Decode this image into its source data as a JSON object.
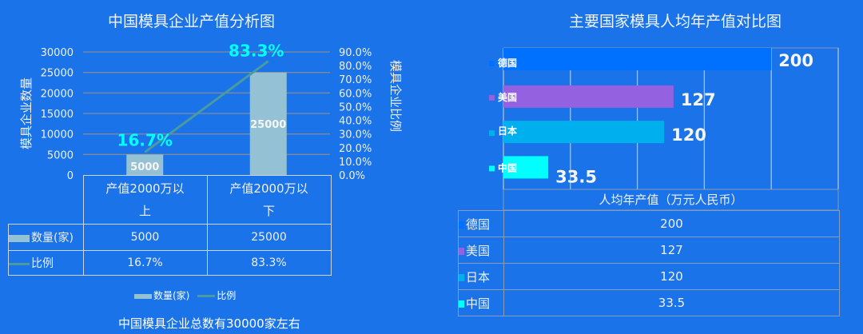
{
  "colors": {
    "bg": "#1a73e8",
    "bar": "#94c2d4",
    "line": "#4a9aa0",
    "label": "#00ffff",
    "grid": "#7f8a99"
  },
  "chart_data": [
    {
      "type": "bar+line",
      "title": "中国模具企业产值分析图",
      "categories": [
        "产值2000万以上",
        "产值2000万以下"
      ],
      "category_lines": [
        [
          "产值2000万以",
          "上"
        ],
        [
          "产值2000万以",
          "下"
        ]
      ],
      "series": [
        {
          "name": "数量(家)",
          "type": "bar",
          "values": [
            5000,
            25000
          ],
          "data_labels": [
            "5000",
            "25000"
          ]
        },
        {
          "name": "比例",
          "type": "line",
          "axis": "right",
          "values": [
            16.7,
            83.3
          ],
          "data_labels": [
            "16.7%",
            "83.3%"
          ]
        }
      ],
      "ylabel": "模具企业数量",
      "y2label": "模具企业比例",
      "ylim": [
        0,
        30000
      ],
      "y2lim": [
        0,
        90
      ],
      "yticks": [
        "0",
        "5000",
        "10000",
        "15000",
        "20000",
        "25000",
        "30000"
      ],
      "y2ticks": [
        "0.0%",
        "10.0%",
        "20.0%",
        "30.0%",
        "40.0%",
        "50.0%",
        "60.0%",
        "70.0%",
        "80.0%",
        "90.0%"
      ],
      "table": {
        "rows": [
          {
            "label": "数量(家)",
            "cells": [
              "5000",
              "25000"
            ]
          },
          {
            "label": "比例",
            "cells": [
              "16.7%",
              "83.3%"
            ]
          }
        ]
      },
      "legend": [
        "数量(家)",
        "比例"
      ],
      "legend_position": "bottom",
      "footnote": "中国模具企业总数有30000家左右"
    },
    {
      "type": "bar",
      "orientation": "horizontal",
      "title": "主要国家模具人均年产值对比图",
      "categories": [
        "德国",
        "美国",
        "日本",
        "中国"
      ],
      "values": [
        200,
        127,
        120,
        33.5
      ],
      "data_labels": [
        "200",
        "127",
        "120",
        "33.5"
      ],
      "colors": [
        "#0070ff",
        "#9461e0",
        "#00b0ee",
        "#00ffff"
      ],
      "xlabel": "人均年产值（万元人民币）",
      "xlim": [
        0,
        250
      ],
      "grid": true
    }
  ]
}
